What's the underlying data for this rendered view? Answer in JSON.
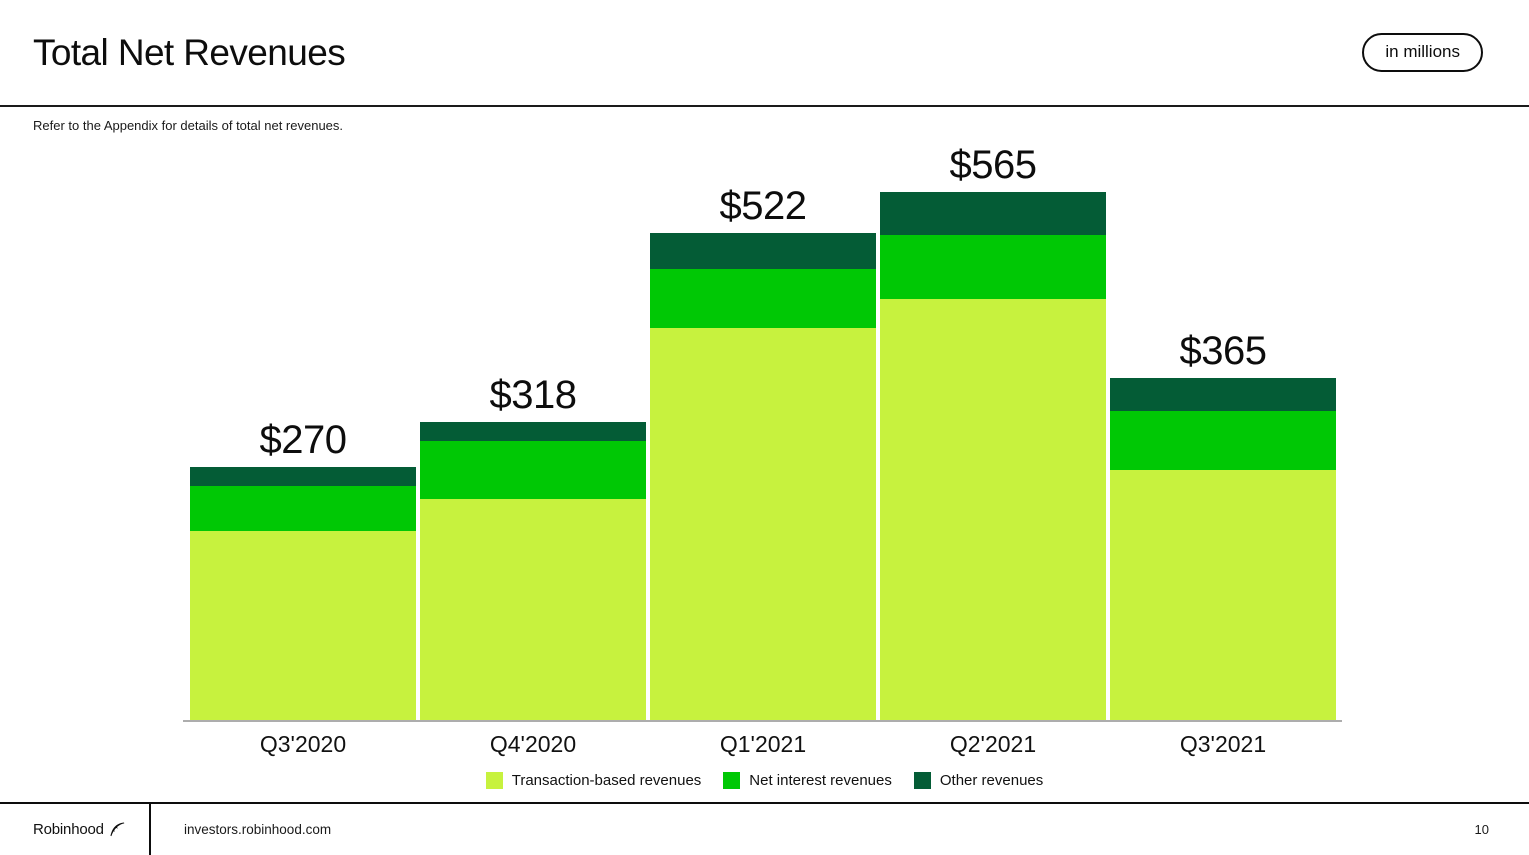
{
  "header": {
    "title": "Total Net Revenues",
    "units_badge": "in millions",
    "note": "Refer to the Appendix for details of total net revenues."
  },
  "chart_data": {
    "type": "bar",
    "stacked": true,
    "title": "Total Net Revenues",
    "units": "in millions (USD)",
    "categories": [
      "Q3'2020",
      "Q4'2020",
      "Q1'2021",
      "Q2'2021",
      "Q3'2021"
    ],
    "series": [
      {
        "name": "Transaction-based revenues",
        "color": "#C7F23E",
        "values": [
          202,
          236,
          420,
          451,
          267
        ]
      },
      {
        "name": "Net interest revenues",
        "color": "#00C805",
        "values": [
          48,
          62,
          63,
          68,
          63
        ]
      },
      {
        "name": "Other revenues",
        "color": "#045C36",
        "values": [
          20,
          20,
          39,
          46,
          35
        ]
      }
    ],
    "totals": [
      270,
      318,
      522,
      565,
      365
    ],
    "total_labels": [
      "$270",
      "$318",
      "$522",
      "$565",
      "$365"
    ],
    "ylim": [
      0,
      565
    ],
    "grid": false,
    "legend_position": "bottom"
  },
  "footer": {
    "brand": "Robinhood",
    "logo_icon": "feather-quill-icon",
    "url": "investors.robinhood.com",
    "page": "10"
  }
}
